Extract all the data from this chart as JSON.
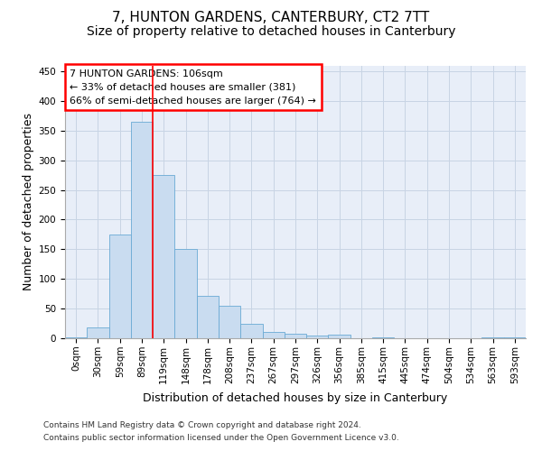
{
  "title": "7, HUNTON GARDENS, CANTERBURY, CT2 7TT",
  "subtitle": "Size of property relative to detached houses in Canterbury",
  "xlabel": "Distribution of detached houses by size in Canterbury",
  "ylabel": "Number of detached properties",
  "bar_labels": [
    "0sqm",
    "30sqm",
    "59sqm",
    "89sqm",
    "119sqm",
    "148sqm",
    "178sqm",
    "208sqm",
    "237sqm",
    "267sqm",
    "297sqm",
    "326sqm",
    "356sqm",
    "385sqm",
    "415sqm",
    "445sqm",
    "474sqm",
    "504sqm",
    "534sqm",
    "563sqm",
    "593sqm"
  ],
  "bar_values": [
    2,
    19,
    175,
    365,
    275,
    151,
    72,
    55,
    25,
    10,
    7,
    4,
    6,
    0,
    1,
    0,
    0,
    0,
    0,
    1,
    2
  ],
  "bar_color": "#c9dcf0",
  "bar_edge_color": "#6aaad4",
  "grid_color": "#c8d4e4",
  "background_color": "#e8eef8",
  "annotation_box_text": "7 HUNTON GARDENS: 106sqm\n← 33% of detached houses are smaller (381)\n66% of semi-detached houses are larger (764) →",
  "red_line_x": 3.5,
  "ylim": [
    0,
    460
  ],
  "yticks": [
    0,
    50,
    100,
    150,
    200,
    250,
    300,
    350,
    400,
    450
  ],
  "footnote1": "Contains HM Land Registry data © Crown copyright and database right 2024.",
  "footnote2": "Contains public sector information licensed under the Open Government Licence v3.0.",
  "title_fontsize": 11,
  "subtitle_fontsize": 10,
  "axis_label_fontsize": 9,
  "tick_fontsize": 7.5,
  "footnote_fontsize": 6.5
}
